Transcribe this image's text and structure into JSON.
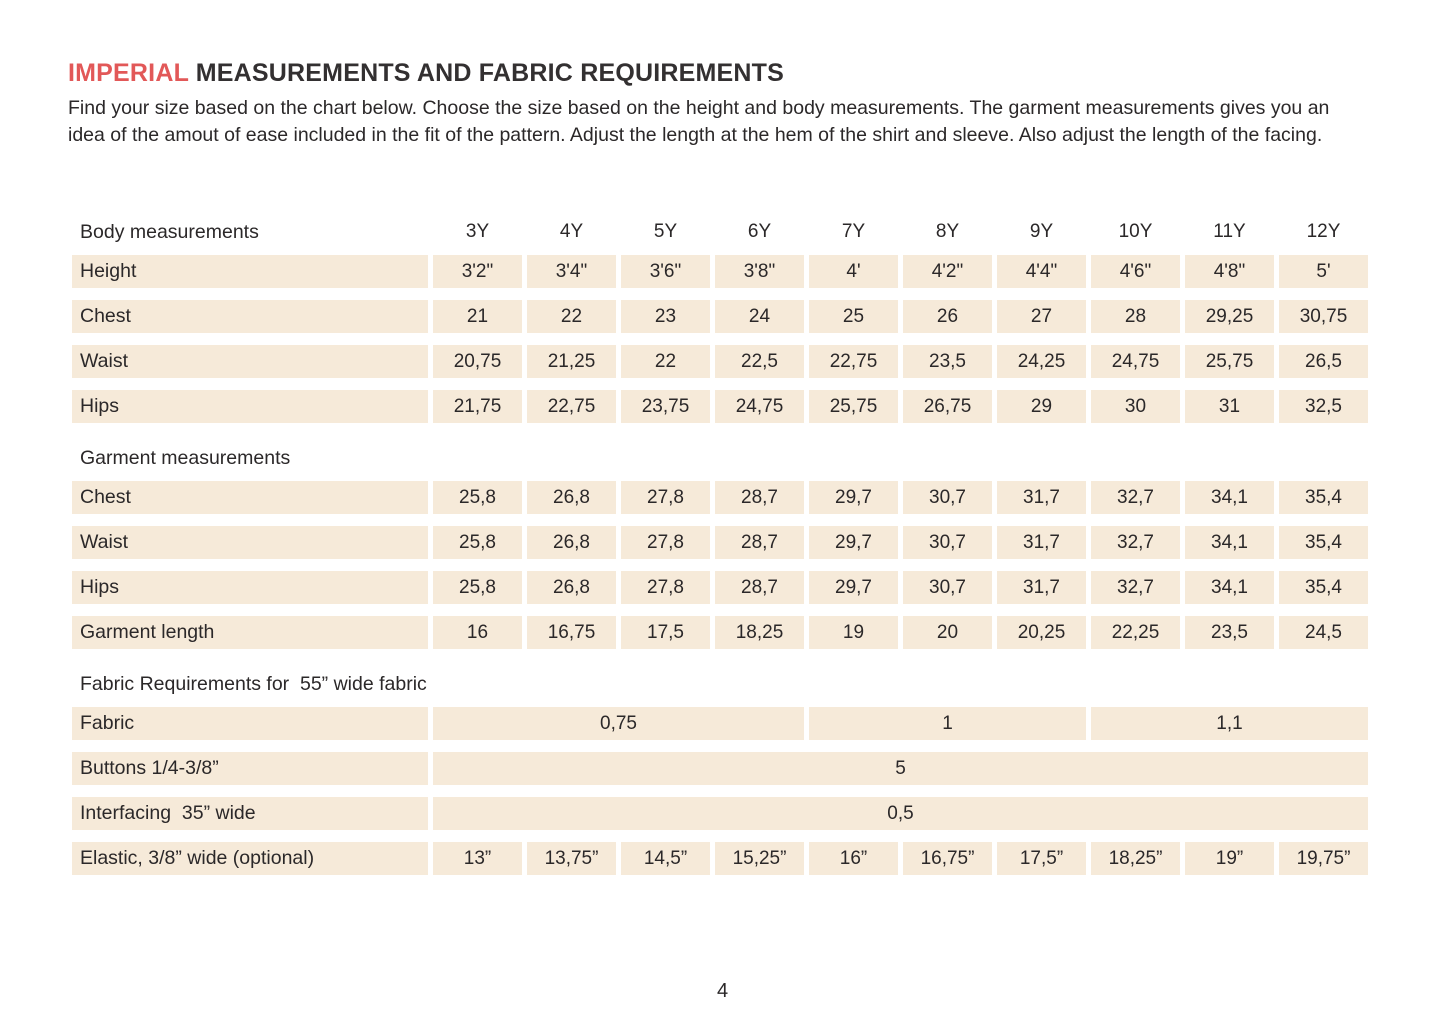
{
  "page": {
    "title_highlight": "IMPERIAL",
    "title_rest": " MEASUREMENTS AND FABRIC REQUIREMENTS",
    "intro": "Find your size based on the chart below. Choose the size based on the height and body measurements. The garment measurements gives you an idea of the amout of ease included in the fit of the pattern. Adjust the length at the hem of the shirt and sleeve. Also adjust the length of the facing.",
    "page_number": "4"
  },
  "colors": {
    "accent": "#e25858",
    "cell_bg": "#f6ead9",
    "text": "#2b2829",
    "page_bg": "#ffffff"
  },
  "table": {
    "sizes": [
      "3Y",
      "4Y",
      "5Y",
      "6Y",
      "7Y",
      "8Y",
      "9Y",
      "10Y",
      "11Y",
      "12Y"
    ],
    "sections": [
      {
        "header": "Body measurements",
        "show_sizes": true,
        "rows": [
          {
            "label": "Height",
            "values": [
              "3'2\"",
              "3'4\"",
              "3'6\"",
              "3'8\"",
              "4'",
              "4'2\"",
              "4'4\"",
              "4'6\"",
              "4'8\"",
              "5'"
            ]
          },
          {
            "label": "Chest",
            "values": [
              "21",
              "22",
              "23",
              "24",
              "25",
              "26",
              "27",
              "28",
              "29,25",
              "30,75"
            ]
          },
          {
            "label": "Waist",
            "values": [
              "20,75",
              "21,25",
              "22",
              "22,5",
              "22,75",
              "23,5",
              "24,25",
              "24,75",
              "25,75",
              "26,5"
            ]
          },
          {
            "label": "Hips",
            "values": [
              "21,75",
              "22,75",
              "23,75",
              "24,75",
              "25,75",
              "26,75",
              "29",
              "30",
              "31",
              "32,5"
            ]
          }
        ]
      },
      {
        "header": "Garment measurements",
        "show_sizes": false,
        "rows": [
          {
            "label": "Chest",
            "values": [
              "25,8",
              "26,8",
              "27,8",
              "28,7",
              "29,7",
              "30,7",
              "31,7",
              "32,7",
              "34,1",
              "35,4"
            ]
          },
          {
            "label": "Waist",
            "values": [
              "25,8",
              "26,8",
              "27,8",
              "28,7",
              "29,7",
              "30,7",
              "31,7",
              "32,7",
              "34,1",
              "35,4"
            ]
          },
          {
            "label": "Hips",
            "values": [
              "25,8",
              "26,8",
              "27,8",
              "28,7",
              "29,7",
              "30,7",
              "31,7",
              "32,7",
              "34,1",
              "35,4"
            ]
          },
          {
            "label": "Garment length",
            "values": [
              "16",
              "16,75",
              "17,5",
              "18,25",
              "19",
              "20",
              "20,25",
              "22,25",
              "23,5",
              "24,5"
            ]
          }
        ]
      },
      {
        "header": "Fabric Requirements for  55” wide fabric",
        "show_sizes": false,
        "rows": [
          {
            "label": "Fabric",
            "spans": [
              {
                "value": "0,75",
                "cols": 4
              },
              {
                "value": "1",
                "cols": 3
              },
              {
                "value": "1,1",
                "cols": 3
              }
            ]
          },
          {
            "label": "Buttons 1/4-3/8”",
            "spans": [
              {
                "value": "5",
                "cols": 10
              }
            ]
          },
          {
            "label": "Interfacing  35” wide",
            "spans": [
              {
                "value": "0,5",
                "cols": 10
              }
            ]
          },
          {
            "label": "Elastic, 3/8” wide (optional)",
            "values": [
              "13”",
              "13,75”",
              "14,5”",
              "15,25”",
              "16”",
              "16,75”",
              "17,5”",
              "18,25”",
              "19”",
              "19,75”"
            ]
          }
        ]
      }
    ]
  }
}
